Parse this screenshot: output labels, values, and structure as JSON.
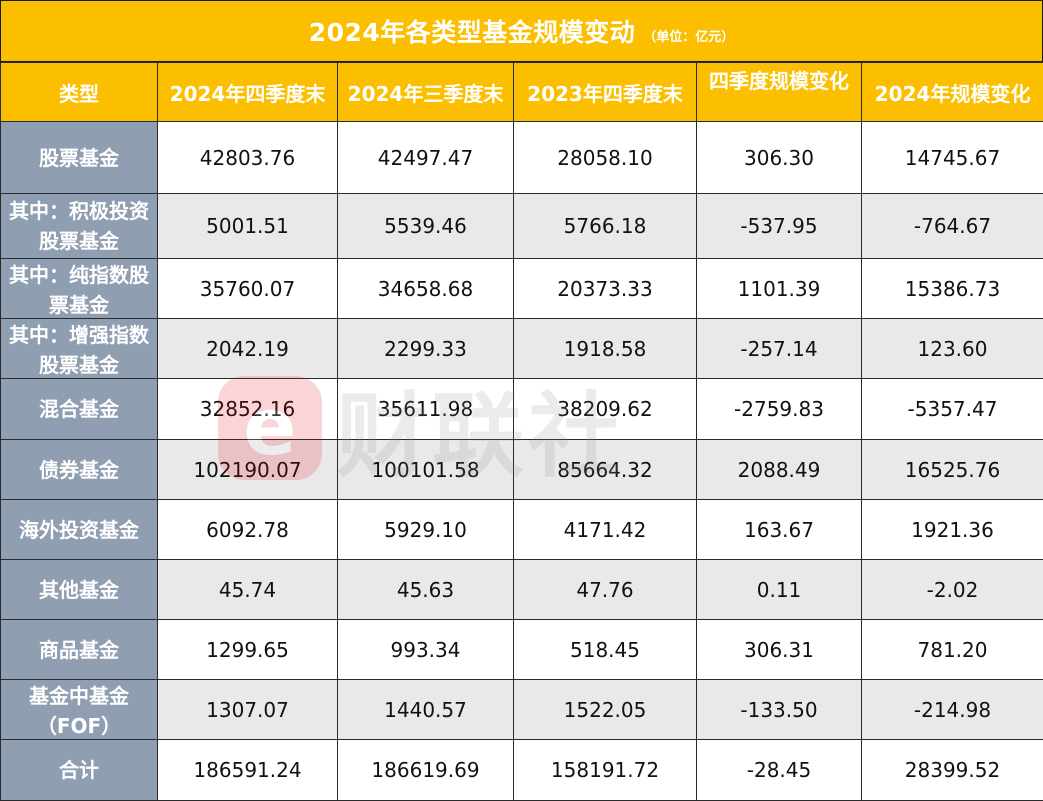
{
  "title": {
    "main": "2024年各类型基金规模变动",
    "unit": "（单位：亿元）"
  },
  "headers": [
    "类型",
    "2024年四季度末",
    "2024年三季度末",
    "2023年四季度末",
    "四季度规模变化",
    "2024年规模变化"
  ],
  "rows": [
    {
      "type": "股票基金",
      "values": [
        "42803.76",
        "42497.47",
        "28058.10",
        "306.30",
        "14745.67"
      ]
    },
    {
      "type": "其中：积极投资股票基金",
      "values": [
        "5001.51",
        "5539.46",
        "5766.18",
        "-537.95",
        "-764.67"
      ]
    },
    {
      "type": "其中：纯指数股票基金",
      "values": [
        "35760.07",
        "34658.68",
        "20373.33",
        "1101.39",
        "15386.73"
      ]
    },
    {
      "type": "其中：增强指数股票基金",
      "values": [
        "2042.19",
        "2299.33",
        "1918.58",
        "-257.14",
        "123.60"
      ]
    },
    {
      "type": "混合基金",
      "values": [
        "32852.16",
        "35611.98",
        "38209.62",
        "-2759.83",
        "-5357.47"
      ]
    },
    {
      "type": "债券基金",
      "values": [
        "102190.07",
        "100101.58",
        "85664.32",
        "2088.49",
        "16525.76"
      ]
    },
    {
      "type": "海外投资基金",
      "values": [
        "6092.78",
        "5929.10",
        "4171.42",
        "163.67",
        "1921.36"
      ]
    },
    {
      "type": "其他基金",
      "values": [
        "45.74",
        "45.63",
        "47.76",
        "0.11",
        "-2.02"
      ]
    },
    {
      "type": "商品基金",
      "values": [
        "1299.65",
        "993.34",
        "518.45",
        "306.31",
        "781.20"
      ]
    },
    {
      "type": "基金中基金（FOF）",
      "values": [
        "1307.07",
        "1440.57",
        "1522.05",
        "-133.50",
        "-214.98"
      ]
    },
    {
      "type": "合计",
      "values": [
        "186591.24",
        "186619.69",
        "158191.72",
        "-28.45",
        "28399.52"
      ]
    }
  ],
  "watermark": {
    "logo_glyph": "e",
    "text": "财联社"
  },
  "colors": {
    "header_bg": "#fbbf00",
    "type_col_bg": "#8f9eb0",
    "stripe_bg": "#e9e9e9"
  }
}
